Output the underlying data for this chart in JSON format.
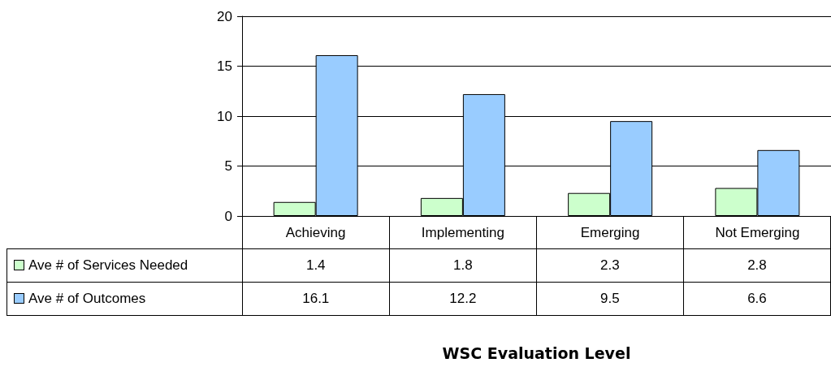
{
  "chart_data": {
    "type": "bar",
    "annotations": [
      "WSC Evaluation Level"
    ],
    "categories": [
      "Achieving",
      "Implementing",
      "Emerging",
      "Not Emerging"
    ],
    "series": [
      {
        "name": "Ave # of Services Needed",
        "color": "#ccffcc",
        "values": [
          1.4,
          1.8,
          2.3,
          2.8
        ]
      },
      {
        "name": "Ave # of Outcomes",
        "color": "#99ccff",
        "values": [
          16.1,
          12.2,
          9.5,
          6.6
        ]
      }
    ],
    "ylim": [
      0,
      20
    ],
    "yticks": [
      0,
      5,
      10,
      15,
      20
    ],
    "grid": "y",
    "data_labels": true,
    "legend": "bottom left"
  }
}
